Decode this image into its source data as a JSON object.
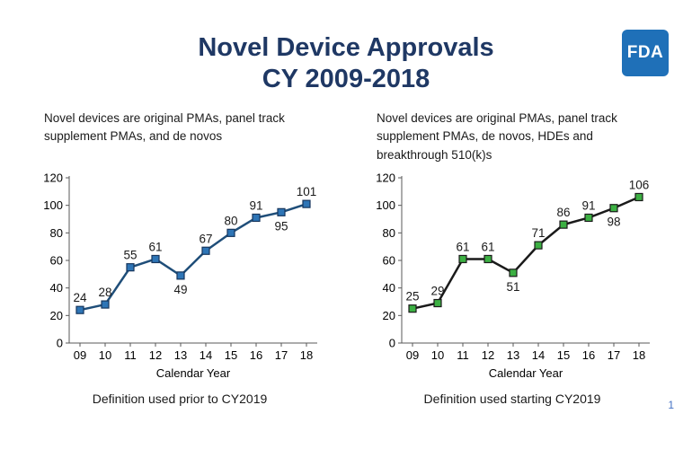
{
  "page": {
    "title_line1": "Novel Device Approvals",
    "title_line2": "CY 2009-2018",
    "logo_text": "FDA",
    "page_number": "1"
  },
  "left_panel": {
    "subtitle": "Novel devices are original PMAs, panel track supplement PMAs, and de novos",
    "caption": "Definition used prior to CY2019"
  },
  "right_panel": {
    "subtitle": "Novel devices are original PMAs, panel track supplement PMAs, de novos, HDEs and breakthrough 510(k)s",
    "caption": "Definition used starting CY2019"
  },
  "chart_data": [
    {
      "type": "line",
      "title": "Novel devices are original PMAs, panel track supplement PMAs, and de novos",
      "categories": [
        "09",
        "10",
        "11",
        "12",
        "13",
        "14",
        "15",
        "16",
        "17",
        "18"
      ],
      "values": [
        24,
        28,
        55,
        61,
        49,
        67,
        80,
        91,
        95,
        101
      ],
      "label_positions": [
        "above",
        "above",
        "above",
        "above",
        "below",
        "above",
        "above",
        "above",
        "below",
        "above"
      ],
      "xlabel": "Calendar Year",
      "ylabel": "",
      "ylim": [
        0,
        120
      ],
      "ytick_interval": 20,
      "grid": false,
      "legend": "none",
      "line_color": "#1F4E79",
      "marker_color": "#2E75B6",
      "marker_border": "#17365D"
    },
    {
      "type": "line",
      "title": "Novel devices are original PMAs, panel track supplement PMAs, de novos, HDEs and breakthrough 510(k)s",
      "categories": [
        "09",
        "10",
        "11",
        "12",
        "13",
        "14",
        "15",
        "16",
        "17",
        "18"
      ],
      "values": [
        25,
        29,
        61,
        61,
        51,
        71,
        86,
        91,
        98,
        106
      ],
      "label_positions": [
        "above",
        "above",
        "above",
        "above",
        "below",
        "above",
        "above",
        "above",
        "below",
        "above"
      ],
      "xlabel": "Calendar Year",
      "ylabel": "",
      "ylim": [
        0,
        120
      ],
      "ytick_interval": 20,
      "grid": false,
      "legend": "none",
      "line_color": "#1a1a1a",
      "marker_color": "#3CB043",
      "marker_border": "#1a1a1a"
    }
  ]
}
